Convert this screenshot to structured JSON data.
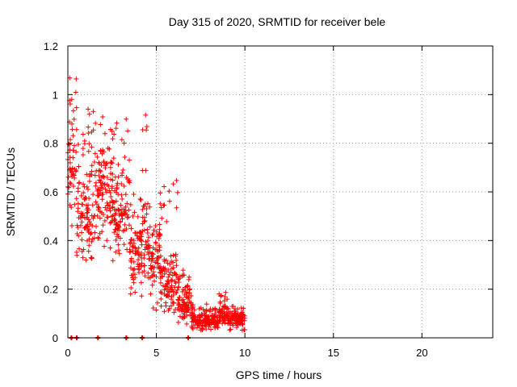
{
  "chart_data": {
    "type": "scatter",
    "title": "Day 315 of 2020, SRMTID for receiver bele",
    "xlabel": "GPS time / hours",
    "ylabel": "SRMTID / TECUs",
    "xlim": [
      0,
      24
    ],
    "ylim": [
      0,
      1.2
    ],
    "xticks": [
      0,
      5,
      10,
      15,
      20
    ],
    "yticks": [
      0,
      0.2,
      0.4,
      0.6,
      0.8,
      1,
      1.2
    ],
    "xtick_labels": [
      "0",
      "5",
      "10",
      "15",
      "20"
    ],
    "ytick_labels": [
      "0",
      "0.2",
      "0.4",
      "0.6",
      "0.8",
      "1",
      "1.2"
    ],
    "grid": true,
    "marker": "plus",
    "series_color": "#ff0000",
    "series": [
      {
        "name": "SRMTID",
        "segments": [
          {
            "x0": 0.0,
            "x1": 0.5,
            "y_min": 0.45,
            "y_max": 1.07,
            "y_center": 0.7
          },
          {
            "x0": 0.5,
            "x1": 1.5,
            "y_min": 0.28,
            "y_max": 0.95,
            "y_center": 0.5
          },
          {
            "x0": 1.5,
            "x1": 2.5,
            "y_min": 0.35,
            "y_max": 0.97,
            "y_center": 0.6
          },
          {
            "x0": 2.5,
            "x1": 3.5,
            "y_min": 0.3,
            "y_max": 0.9,
            "y_center": 0.52
          },
          {
            "x0": 3.5,
            "x1": 4.2,
            "y_min": 0.15,
            "y_max": 0.6,
            "y_center": 0.35
          },
          {
            "x0": 4.2,
            "x1": 4.5,
            "y_min": 0.2,
            "y_max": 0.92,
            "y_center": 0.45
          },
          {
            "x0": 4.5,
            "x1": 5.2,
            "y_min": 0.1,
            "y_max": 0.6,
            "y_center": 0.35
          },
          {
            "x0": 5.2,
            "x1": 6.2,
            "y_min": 0.08,
            "y_max": 0.65,
            "y_center": 0.22
          },
          {
            "x0": 6.2,
            "x1": 7.0,
            "y_min": 0.05,
            "y_max": 0.28,
            "y_center": 0.14
          },
          {
            "x0": 7.0,
            "x1": 8.5,
            "y_min": 0.03,
            "y_max": 0.14,
            "y_center": 0.07
          },
          {
            "x0": 8.5,
            "x1": 9.0,
            "y_min": 0.05,
            "y_max": 0.2,
            "y_center": 0.1
          },
          {
            "x0": 9.0,
            "x1": 10.0,
            "y_min": 0.03,
            "y_max": 0.13,
            "y_center": 0.08
          }
        ],
        "zero_points_x": [
          0.2,
          0.5,
          1.7,
          3.3,
          4.2,
          6.8
        ]
      }
    ]
  }
}
